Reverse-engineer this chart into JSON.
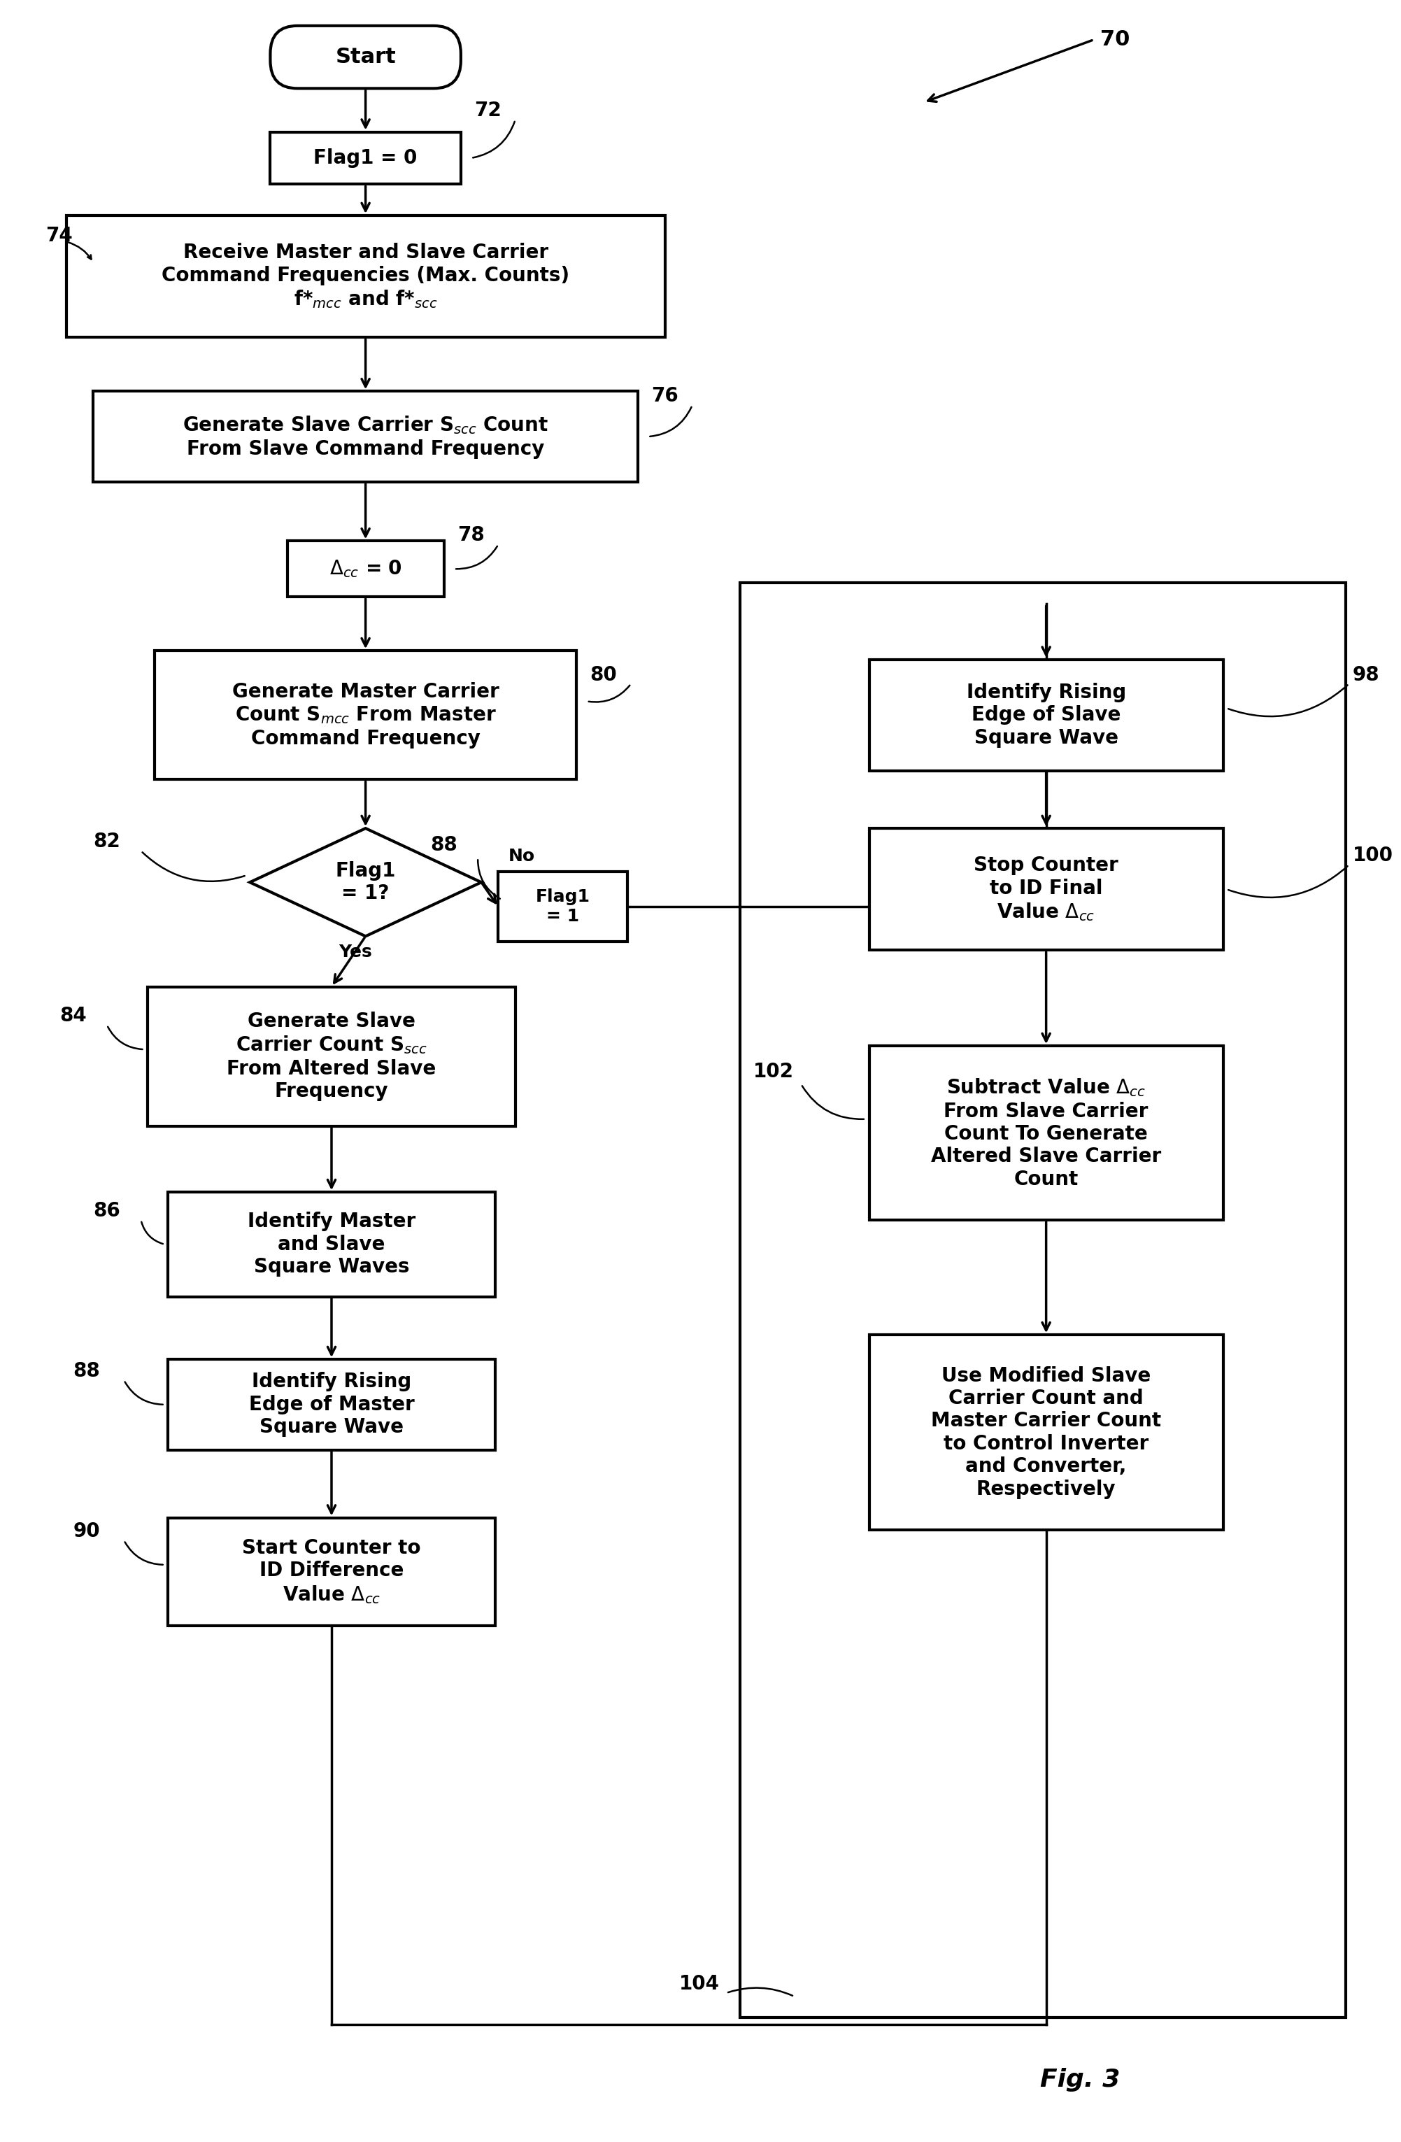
{
  "background_color": "#ffffff",
  "lw": 3.0,
  "arrow_lw": 2.5,
  "fs": 18,
  "fs_small": 16,
  "fig3_label": "Fig. 3",
  "label_70": "70",
  "label_72": "72",
  "label_74": "74",
  "label_76": "76",
  "label_78": "78",
  "label_80": "80",
  "label_82": "82",
  "label_84": "84",
  "label_86": "86",
  "label_88a": "88",
  "label_88b": "88",
  "label_90": "90",
  "label_98": "98",
  "label_100": "100",
  "label_102": "102",
  "label_104": "104",
  "text_start": "Start",
  "text_flag1_0": "Flag1 = 0",
  "text_receive": "Receive Master and Slave Carrier\nCommand Frequencies (Max. Counts)\nf*$_{mcc}$ and f*$_{scc}$",
  "text_gen_slave": "Generate Slave Carrier S$_{scc}$ Count\nFrom Slave Command Frequency",
  "text_delta0": "$\\Delta_{cc}$ = 0",
  "text_gen_master": "Generate Master Carrier\nCount S$_{mcc}$ From Master\nCommand Frequency",
  "text_flag1_q": "Flag1\n= 1?",
  "text_no": "No",
  "text_yes": "Yes",
  "text_flag1_1": "Flag1\n= 1",
  "text_gen_slave_alt": "Generate Slave\nCarrier Count S$_{scc}$\nFrom Altered Slave\nFrequency",
  "text_id_waves": "Identify Master\nand Slave\nSquare Waves",
  "text_id_rising_master": "Identify Rising\nEdge of Master\nSquare Wave",
  "text_start_counter": "Start Counter to\nID Difference\nValue $\\Delta_{cc}$",
  "text_id_rising_slave": "Identify Rising\nEdge of Slave\nSquare Wave",
  "text_stop_counter": "Stop Counter\nto ID Final\nValue $\\Delta_{cc}$",
  "text_subtract": "Subtract Value $\\Delta_{cc}$\nFrom Slave Carrier\nCount To Generate\nAltered Slave Carrier\nCount",
  "text_use_modified": "Use Modified Slave\nCarrier Count and\nMaster Carrier Count\nto Control Inverter\nand Converter,\nRespectively"
}
